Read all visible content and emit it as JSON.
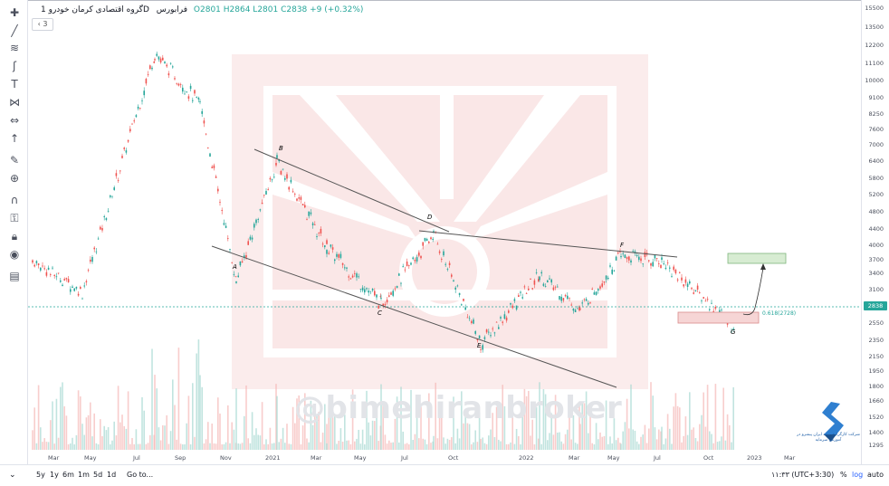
{
  "header": {
    "symbol_title": "گروه اقتصادی کرمان خودرو",
    "interval": "1D",
    "exchange": "فرابورس",
    "ohlc": "O2801 H2864 L2801 C2838 +9 (+0.32%)"
  },
  "collapse_label": "‹ 3",
  "toolbar": {
    "icons": [
      "crosshair-icon",
      "trend-line-icon",
      "fib-tool-icon",
      "brush-icon",
      "text-icon",
      "pattern-icon",
      "measure-icon",
      "arrow-icon",
      "ruler-icon",
      "zoom-in-icon",
      "magnet-icon",
      "lock-drawings-icon",
      "lock-icon",
      "eye-icon",
      "trash-icon",
      "collapse-icon"
    ]
  },
  "price_axis": {
    "labels": [
      "15500",
      "13500",
      "12200",
      "11100",
      "10000",
      "9100",
      "8250",
      "7600",
      "7000",
      "6400",
      "5800",
      "5200",
      "4800",
      "4400",
      "4000",
      "3700",
      "3400",
      "3100",
      "2850",
      "2550",
      "2350",
      "2150",
      "1950",
      "1800",
      "1660",
      "1520",
      "1400",
      "1295"
    ],
    "current_price": "2838",
    "current_color": "#26a69a"
  },
  "time_axis": {
    "labels": [
      "Mar",
      "May",
      "Jul",
      "Sep",
      "Nov",
      "2021",
      "Mar",
      "May",
      "Jul",
      "Oct",
      "2022",
      "Mar",
      "May",
      "Jul",
      "Oct",
      "2023",
      "Mar"
    ]
  },
  "annotations": {
    "points": [
      "A",
      "B",
      "C",
      "D",
      "E",
      "F",
      "G"
    ],
    "fib_label": "0.618(2728)"
  },
  "watermark": "@bimehiranbroker",
  "corner_caption": "شرکت کارگزاری بیمه ایران پیشرو در آموزش سرمایه",
  "bottom_bar": {
    "ranges": [
      "5y",
      "1y",
      "6m",
      "1m",
      "5d",
      "1d"
    ],
    "goto": "Go to...",
    "time": "۱۱:۳۳ (UTC+3:30)",
    "pct": "%",
    "log": "log",
    "auto": "auto"
  },
  "colors": {
    "up": "#26a69a",
    "down": "#ef5350",
    "watermark_logo": "#f3cccc",
    "target_box": "#d7ecd2",
    "support_box": "#f6d5d5"
  },
  "chart_data": {
    "type": "candlestick",
    "title": "",
    "x": [
      "Mar",
      "May",
      "Jul",
      "Sep",
      "Nov",
      "2021",
      "Mar",
      "May",
      "Jul",
      "Oct",
      "2022",
      "Mar",
      "May",
      "Jul",
      "Oct"
    ],
    "values": [
      3700,
      3100,
      12000,
      9000,
      3300,
      6500,
      4000,
      2900,
      4300,
      2300,
      3400,
      2800,
      3800,
      3700,
      2550
    ],
    "ylim": [
      1295,
      15500
    ],
    "scale": "log"
  }
}
